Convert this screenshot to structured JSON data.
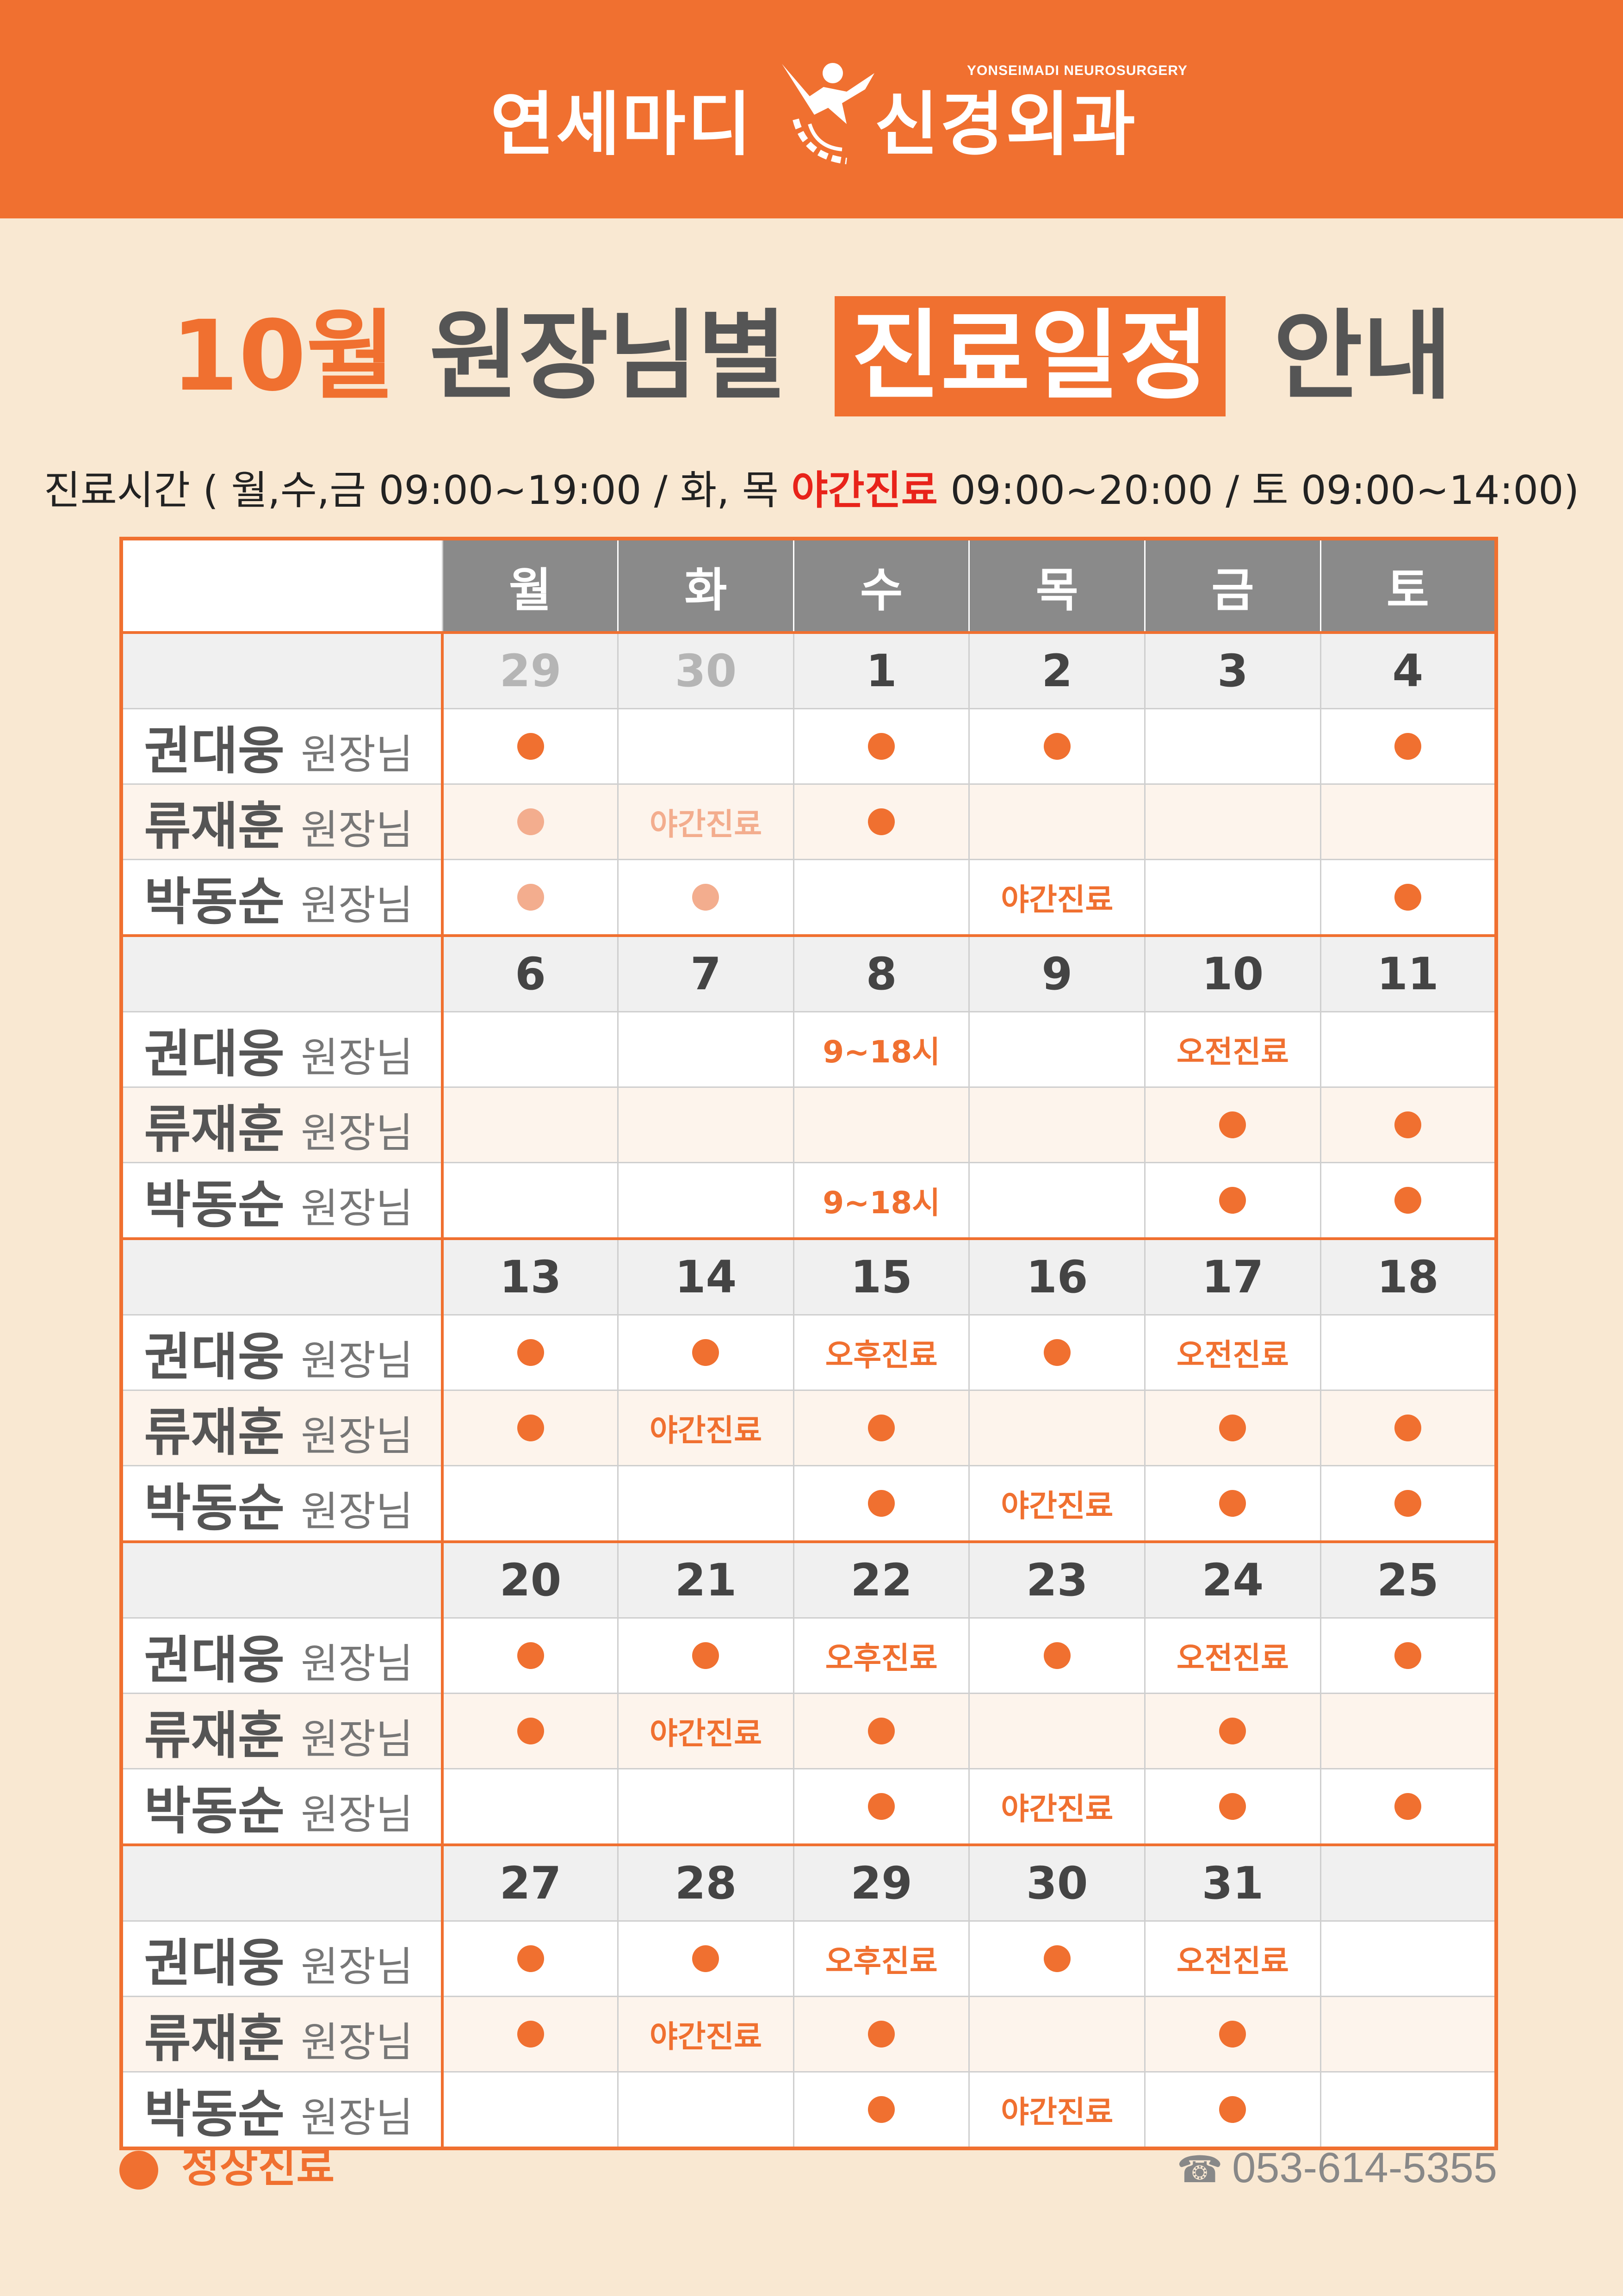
{
  "header": {
    "logo_left": "연세마디",
    "logo_right": "신경외과",
    "logo_sub": "YONSEIMADI NEUROSURGERY"
  },
  "title": {
    "month": "10월",
    "middle": "원장님별",
    "boxed": "진료일정",
    "end": "안내"
  },
  "hours": {
    "prefix": "진료시간 ( 월,수,금  09:00~19:00 / 화, 목 ",
    "night": "야간진료",
    "suffix": " 09:00~20:00 / 토  09:00~14:00)"
  },
  "weekdays": [
    "월",
    "화",
    "수",
    "목",
    "금",
    "토"
  ],
  "role": "원장님",
  "doctors": [
    "권대웅",
    "류재훈",
    "박동순"
  ],
  "weeks": [
    {
      "dates": [
        "29",
        "30",
        "1",
        "2",
        "3",
        "4"
      ],
      "prev_month": [
        true,
        true,
        false,
        false,
        false,
        false
      ],
      "rows": [
        [
          "dot",
          "",
          "dot",
          "dot",
          "",
          "dot"
        ],
        [
          "dot-faded",
          "야간진료|faded",
          "dot",
          "",
          "",
          ""
        ],
        [
          "dot-faded",
          "dot-faded",
          "",
          "야간진료",
          "",
          "dot"
        ]
      ]
    },
    {
      "dates": [
        "6",
        "7",
        "8",
        "9",
        "10",
        "11"
      ],
      "prev_month": [
        false,
        false,
        false,
        false,
        false,
        false
      ],
      "rows": [
        [
          "",
          "",
          "9~18시",
          "",
          "오전진료",
          ""
        ],
        [
          "",
          "",
          "",
          "",
          "dot",
          "dot"
        ],
        [
          "",
          "",
          "9~18시",
          "",
          "dot",
          "dot"
        ]
      ]
    },
    {
      "dates": [
        "13",
        "14",
        "15",
        "16",
        "17",
        "18"
      ],
      "prev_month": [
        false,
        false,
        false,
        false,
        false,
        false
      ],
      "rows": [
        [
          "dot",
          "dot",
          "오후진료",
          "dot",
          "오전진료",
          ""
        ],
        [
          "dot",
          "야간진료",
          "dot",
          "",
          "dot",
          "dot"
        ],
        [
          "",
          "",
          "dot",
          "야간진료",
          "dot",
          "dot"
        ]
      ]
    },
    {
      "dates": [
        "20",
        "21",
        "22",
        "23",
        "24",
        "25"
      ],
      "prev_month": [
        false,
        false,
        false,
        false,
        false,
        false
      ],
      "rows": [
        [
          "dot",
          "dot",
          "오후진료",
          "dot",
          "오전진료",
          "dot"
        ],
        [
          "dot",
          "야간진료",
          "dot",
          "",
          "dot",
          ""
        ],
        [
          "",
          "",
          "dot",
          "야간진료",
          "dot",
          "dot"
        ]
      ]
    },
    {
      "dates": [
        "27",
        "28",
        "29",
        "30",
        "31",
        ""
      ],
      "prev_month": [
        false,
        false,
        false,
        false,
        false,
        false
      ],
      "rows": [
        [
          "dot",
          "dot",
          "오후진료",
          "dot",
          "오전진료",
          ""
        ],
        [
          "dot",
          "야간진료",
          "dot",
          "",
          "dot",
          ""
        ],
        [
          "",
          "",
          "dot",
          "야간진료",
          "dot",
          ""
        ]
      ]
    }
  ],
  "legend": {
    "label": "정상진료"
  },
  "phone": {
    "icon": "☎",
    "number": "053-614-5355"
  },
  "colors": {
    "accent": "#f07030",
    "background": "#f9e8d2",
    "header_gray": "#8a8a8a",
    "faded": "#f3ad8e",
    "night": "#e8231a"
  }
}
